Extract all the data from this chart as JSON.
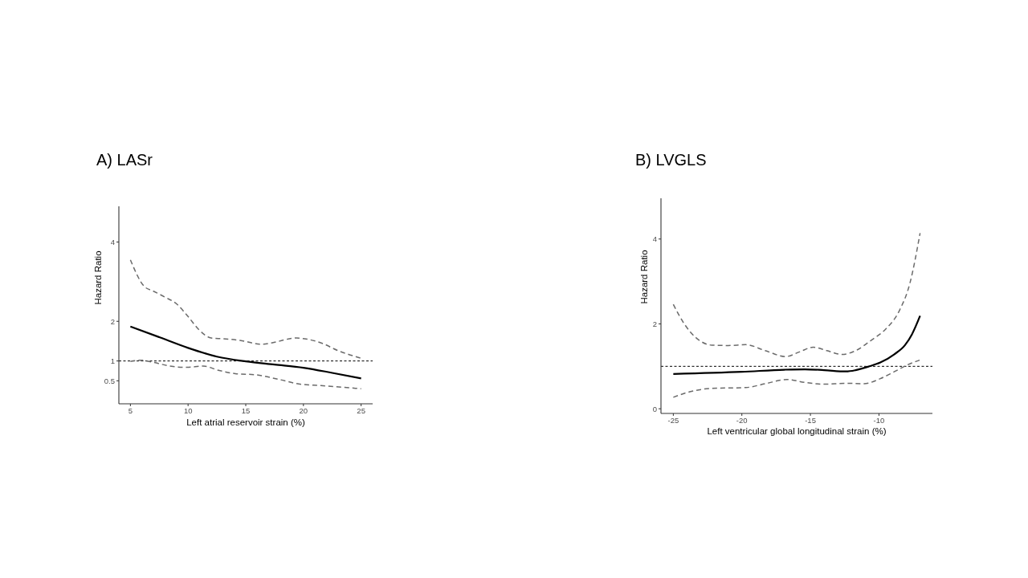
{
  "chart_data": [
    {
      "type": "line",
      "title": "A) LASr",
      "xlabel": "Left atrial reservoir strain (%)",
      "ylabel": "Hazard Ratio",
      "xlim": [
        4,
        26
      ],
      "xticks": [
        5,
        10,
        15,
        20,
        25
      ],
      "ylim": [
        -0.08,
        4.9
      ],
      "yticks": [
        0.5,
        1,
        2,
        4
      ],
      "series": [
        {
          "color": "#000000",
          "line_style": "solid",
          "x": [
            5,
            7.5,
            10,
            12.5,
            15,
            17.5,
            20,
            22.5,
            25
          ],
          "values": [
            1.87,
            1.6,
            1.33,
            1.11,
            0.99,
            0.91,
            0.83,
            0.7,
            0.56
          ]
        },
        {
          "color": "#6b6b6b",
          "line_style": "dashed",
          "x": [
            5,
            6.2,
            7,
            8,
            9,
            10,
            11,
            12,
            13,
            14.5,
            16.4,
            17.3,
            19.4,
            20.1,
            21.5,
            23,
            25
          ],
          "values": [
            3.55,
            2.88,
            2.76,
            2.61,
            2.44,
            2.12,
            1.77,
            1.58,
            1.56,
            1.52,
            1.42,
            1.46,
            1.58,
            1.56,
            1.46,
            1.26,
            1.07
          ]
        },
        {
          "color": "#6b6b6b",
          "line_style": "dashed",
          "x": [
            5,
            5.9,
            6.9,
            8.7,
            9.9,
            11.3,
            12.7,
            14.1,
            15.9,
            17.8,
            19.6,
            21.5,
            23.3,
            25
          ],
          "values": [
            0.99,
            1.02,
            0.97,
            0.86,
            0.84,
            0.87,
            0.76,
            0.68,
            0.65,
            0.54,
            0.42,
            0.38,
            0.34,
            0.3
          ]
        }
      ],
      "ref_lines": [
        {
          "axis": "y",
          "value": 1,
          "color": "#000000",
          "line_style": "dashed"
        }
      ]
    },
    {
      "type": "line",
      "title": "B) LVGLS",
      "xlabel": "Left ventricular global longitudinal strain (%)",
      "ylabel": "Hazard Ratio",
      "xlim": [
        -25.9,
        -6.1
      ],
      "xticks": [
        -25,
        -20,
        -15,
        -10
      ],
      "ylim": [
        -0.11,
        4.96
      ],
      "yticks": [
        0,
        2,
        4
      ],
      "series": [
        {
          "color": "#000000",
          "line_style": "solid",
          "x": [
            -25,
            -20,
            -16.9,
            -15.4,
            -14,
            -12.4,
            -11.7,
            -10.7,
            -9.9,
            -8.9,
            -8.1,
            -7.6,
            -7
          ],
          "values": [
            0.82,
            0.87,
            0.92,
            0.93,
            0.91,
            0.88,
            0.91,
            1.0,
            1.09,
            1.28,
            1.5,
            1.75,
            2.19
          ]
        },
        {
          "color": "#6b6b6b",
          "line_style": "dashed",
          "x": [
            -25,
            -24.2,
            -23.4,
            -22.2,
            -21,
            -19.7,
            -18.3,
            -16.8,
            -15.8,
            -14.8,
            -13.8,
            -12.7,
            -11.7,
            -10.5,
            -9.5,
            -8.5,
            -7.75,
            -7
          ],
          "values": [
            2.46,
            2.0,
            1.69,
            1.5,
            1.49,
            1.51,
            1.37,
            1.23,
            1.34,
            1.45,
            1.37,
            1.28,
            1.37,
            1.63,
            1.88,
            2.32,
            2.95,
            4.14
          ]
        },
        {
          "color": "#6b6b6b",
          "line_style": "dashed",
          "x": [
            -25,
            -23.8,
            -22.2,
            -19.7,
            -18.3,
            -16.7,
            -15.4,
            -14,
            -12.4,
            -11.1,
            -9.9,
            -8.9,
            -7.95,
            -7
          ],
          "values": [
            0.27,
            0.4,
            0.48,
            0.5,
            0.59,
            0.69,
            0.62,
            0.58,
            0.6,
            0.59,
            0.71,
            0.87,
            1.03,
            1.15
          ]
        }
      ],
      "ref_lines": [
        {
          "axis": "y",
          "value": 1,
          "color": "#000000",
          "line_style": "dashed"
        }
      ]
    }
  ]
}
